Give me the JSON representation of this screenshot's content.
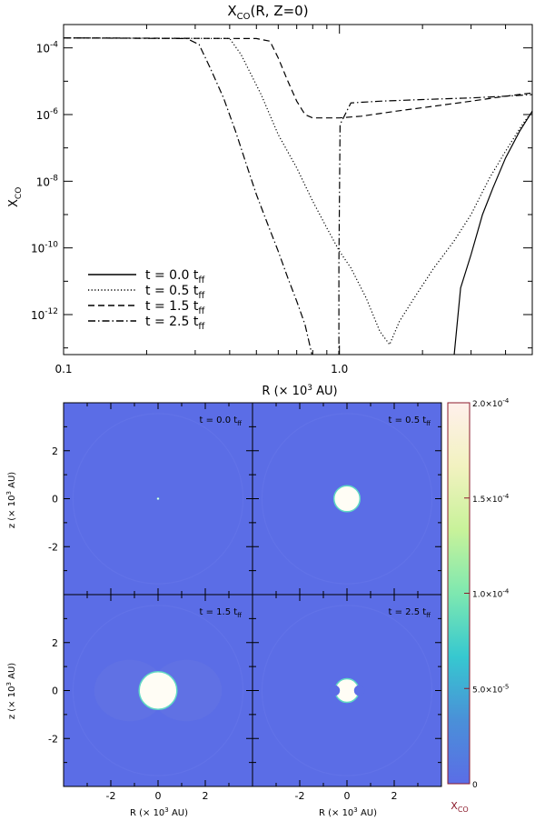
{
  "chart_data": [
    {
      "type": "line",
      "title_main": "X",
      "title_sub": "CO",
      "title_rest": "(R,  Z=0)",
      "xlabel_main": "R  (× 10",
      "xlabel_sup": "3",
      "xlabel_rest": " AU)",
      "ylabel_main": "X",
      "ylabel_sub": "CO",
      "x_scale": "log",
      "y_scale": "log",
      "xlim": [
        0.1,
        5.0
      ],
      "ylim_exp": [
        -13.2,
        -3.3
      ],
      "x_ticks": [
        {
          "value": 0.1,
          "label": "0.1"
        },
        {
          "value": 1.0,
          "label": "1.0"
        }
      ],
      "y_ticks": [
        {
          "exp": -4,
          "base": "10",
          "sup": "-4"
        },
        {
          "exp": -6,
          "base": "10",
          "sup": "-6"
        },
        {
          "exp": -8,
          "base": "10",
          "sup": "-8"
        },
        {
          "exp": -10,
          "base": "10",
          "sup": "-10"
        },
        {
          "exp": -12,
          "base": "10",
          "sup": "-12"
        }
      ],
      "legend_position": "bottom-left",
      "series": [
        {
          "name_main": "t  =  0.0  t",
          "name_sub": "ff",
          "dash": "solid",
          "points": [
            [
              2.6,
              -13.3
            ],
            [
              2.75,
              -11.2
            ],
            [
              3.0,
              -10.2
            ],
            [
              3.3,
              -9.0
            ],
            [
              3.6,
              -8.2
            ],
            [
              4.0,
              -7.3
            ],
            [
              4.5,
              -6.5
            ],
            [
              5.0,
              -5.9
            ]
          ]
        },
        {
          "name_main": "t  =  0.5  t",
          "name_sub": "ff",
          "dash": "dotted",
          "points": [
            [
              0.1,
              -3.7
            ],
            [
              0.4,
              -3.72
            ],
            [
              0.44,
              -4.2
            ],
            [
              0.52,
              -5.4
            ],
            [
              0.6,
              -6.6
            ],
            [
              0.7,
              -7.6
            ],
            [
              0.8,
              -8.6
            ],
            [
              0.9,
              -9.4
            ],
            [
              1.0,
              -10.1
            ],
            [
              1.1,
              -10.6
            ],
            [
              1.25,
              -11.5
            ],
            [
              1.4,
              -12.5
            ],
            [
              1.52,
              -12.9
            ],
            [
              1.65,
              -12.2
            ],
            [
              1.9,
              -11.4
            ],
            [
              2.2,
              -10.6
            ],
            [
              2.6,
              -9.8
            ],
            [
              3.0,
              -9.0
            ],
            [
              3.5,
              -7.9
            ],
            [
              4.0,
              -7.1
            ],
            [
              4.6,
              -6.3
            ],
            [
              5.0,
              -5.9
            ]
          ]
        },
        {
          "name_main": "t  =  1.5  t",
          "name_sub": "ff",
          "dash": "dashed",
          "points": [
            [
              0.1,
              -3.7
            ],
            [
              0.5,
              -3.72
            ],
            [
              0.56,
              -3.8
            ],
            [
              0.6,
              -4.3
            ],
            [
              0.65,
              -5.0
            ],
            [
              0.7,
              -5.6
            ],
            [
              0.75,
              -6.0
            ],
            [
              0.8,
              -6.1
            ],
            [
              1.0,
              -6.1
            ],
            [
              1.2,
              -6.05
            ],
            [
              1.6,
              -5.9
            ],
            [
              2.2,
              -5.75
            ],
            [
              3.0,
              -5.6
            ],
            [
              4.0,
              -5.45
            ],
            [
              5.0,
              -5.35
            ]
          ]
        },
        {
          "name_main": "t  =  2.5  t",
          "name_sub": "ff",
          "dash": "dashdot",
          "points": [
            [
              0.1,
              -3.7
            ],
            [
              0.28,
              -3.72
            ],
            [
              0.31,
              -3.9
            ],
            [
              0.34,
              -4.6
            ],
            [
              0.38,
              -5.5
            ],
            [
              0.42,
              -6.5
            ],
            [
              0.46,
              -7.5
            ],
            [
              0.5,
              -8.4
            ],
            [
              0.55,
              -9.3
            ],
            [
              0.6,
              -10.1
            ],
            [
              0.65,
              -10.9
            ],
            [
              0.7,
              -11.6
            ],
            [
              0.75,
              -12.3
            ],
            [
              0.8,
              -13.3
            ]
          ]
        },
        {
          "name_main": "",
          "name_sub": "",
          "dash": "dashdot",
          "points": [
            [
              0.995,
              -13.3
            ],
            [
              0.995,
              -10.5
            ],
            [
              1.005,
              -6.3
            ],
            [
              1.1,
              -5.65
            ],
            [
              1.4,
              -5.6
            ],
            [
              2.0,
              -5.55
            ],
            [
              3.0,
              -5.5
            ],
            [
              4.0,
              -5.45
            ],
            [
              5.0,
              -5.4
            ]
          ]
        }
      ]
    },
    {
      "type": "heatmap",
      "xlabel_main": "R  (× 10",
      "xlabel_sup": "3",
      "xlabel_rest": " AU)",
      "ylabel_main": "z  (× 10",
      "ylabel_sup": "3",
      "ylabel_rest": " AU)",
      "xlim": [
        -4,
        4
      ],
      "ylim": [
        -4,
        4
      ],
      "x_ticks": [
        -2,
        0,
        2
      ],
      "y_ticks": [
        2,
        0,
        -2
      ],
      "background_color": "#5b6de6",
      "core_color": "#fffdf5",
      "edge_color": "#5fd8c4",
      "panels": [
        {
          "label_main": "t = 0.0  t",
          "label_sub": "ff",
          "core_radius": 0.04,
          "shape": "circle",
          "halo": false
        },
        {
          "label_main": "t = 0.5  t",
          "label_sub": "ff",
          "core_radius": 0.55,
          "shape": "circle",
          "halo": false
        },
        {
          "label_main": "t = 1.5  t",
          "label_sub": "ff",
          "core_radius": 0.8,
          "shape": "circle",
          "halo": true
        },
        {
          "label_main": "t = 2.5  t",
          "label_sub": "ff",
          "core_radius": 0.5,
          "shape": "notched",
          "halo": false
        }
      ],
      "colorbar": {
        "min": 0,
        "max": 0.0002,
        "tick_labels": [
          {
            "value": 0,
            "main": "0",
            "sup": ""
          },
          {
            "value": 5e-05,
            "main": "5.0×10",
            "sup": "-5"
          },
          {
            "value": 0.0001,
            "main": "1.0×10",
            "sup": "-4"
          },
          {
            "value": 0.00015,
            "main": "1.5×10",
            "sup": "-4"
          },
          {
            "value": 0.0002,
            "main": "2.0×10",
            "sup": "-4"
          }
        ],
        "label_main": "X",
        "label_sub": "CO",
        "label_color": "#8b1a2b",
        "stops": [
          "#5b6de6",
          "#4a90d8",
          "#36c8d0",
          "#7ee8b0",
          "#c8f29a",
          "#f2f2c0",
          "#fff0ec"
        ]
      }
    }
  ]
}
